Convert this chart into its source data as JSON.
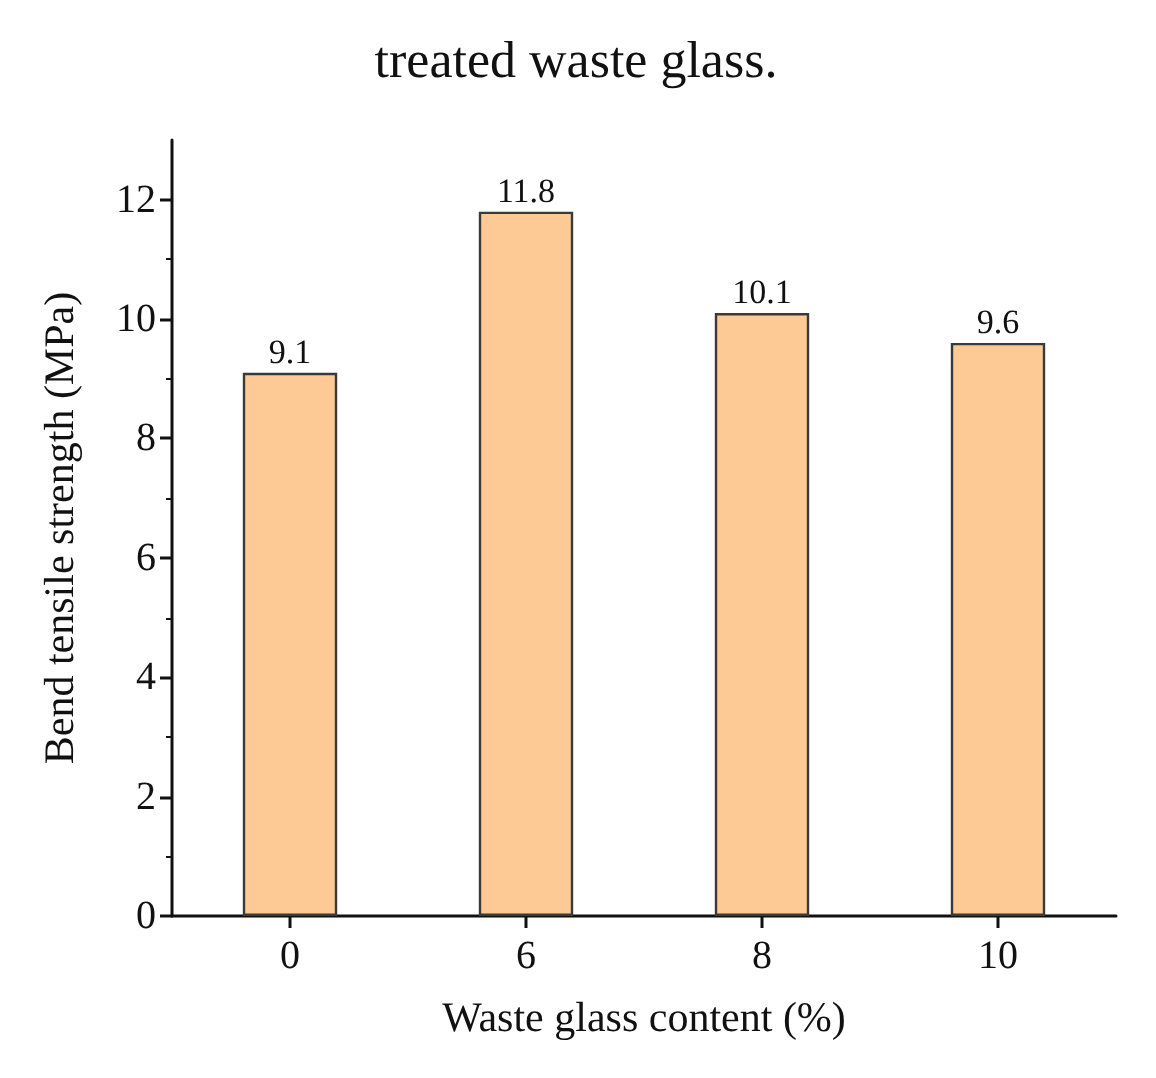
{
  "chart_data": {
    "type": "bar",
    "title": "treated waste glass.",
    "xlabel": "Waste glass content (%)",
    "ylabel": "Bend tensile strength (MPa)",
    "categories": [
      "0",
      "6",
      "8",
      "10"
    ],
    "values": [
      9.1,
      11.8,
      10.1,
      9.6
    ],
    "color": "#fdca95",
    "ylim": [
      0,
      13
    ],
    "yticks": [
      0,
      2,
      4,
      6,
      8,
      10,
      12
    ],
    "grid": false,
    "data_labels": true
  }
}
